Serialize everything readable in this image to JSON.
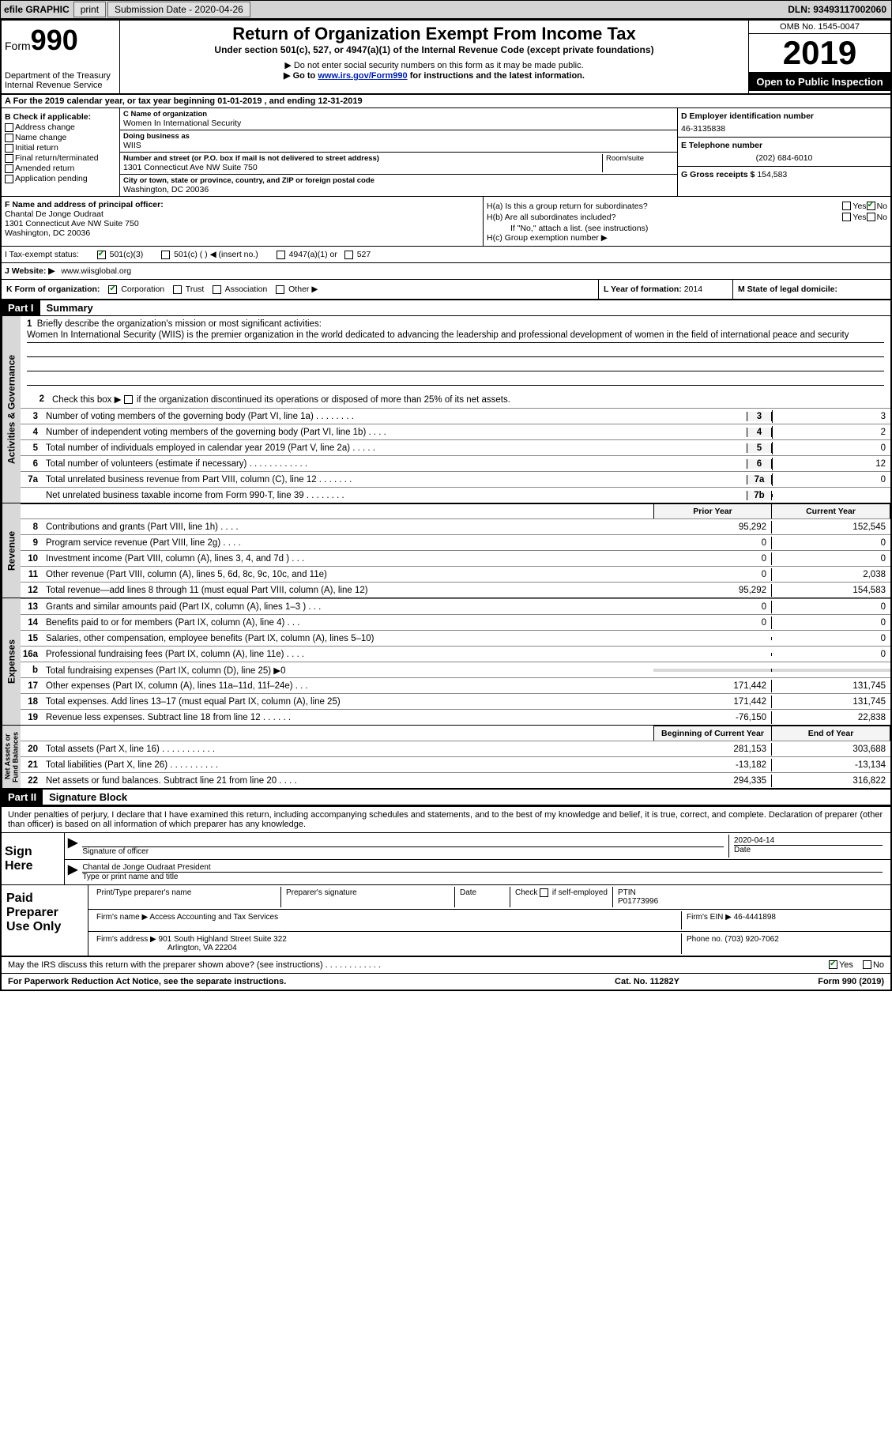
{
  "topbar": {
    "efile_label": "efile GRAPHIC",
    "print_label": "print",
    "sub_date_label": "Submission Date - 2020-04-26",
    "dln": "DLN: 93493117002060"
  },
  "header": {
    "form_word": "Form",
    "form_num": "990",
    "dept": "Department of the Treasury\nInternal Revenue Service",
    "title": "Return of Organization Exempt From Income Tax",
    "sub": "Under section 501(c), 527, or 4947(a)(1) of the Internal Revenue Code (except private foundations)",
    "note1": "▶ Do not enter social security numbers on this form as it may be made public.",
    "note2_pre": "▶ Go to ",
    "note2_link": "www.irs.gov/Form990",
    "note2_post": " for instructions and the latest information.",
    "omb": "OMB No. 1545-0047",
    "year": "2019",
    "open": "Open to Public Inspection"
  },
  "row_a": "A  For the 2019 calendar year, or tax year beginning 01-01-2019    , and ending 12-31-2019",
  "col_b": {
    "hdr": "B Check if applicable:",
    "items": [
      "Address change",
      "Name change",
      "Initial return",
      "Final return/terminated",
      "Amended return",
      "Application pending"
    ]
  },
  "col_c": {
    "name_lbl": "C Name of organization",
    "name": "Women In International Security",
    "dba_lbl": "Doing business as",
    "dba": "WIIS",
    "addr_lbl": "Number and street (or P.O. box if mail is not delivered to street address)",
    "addr": "1301 Connecticut Ave NW Suite 750",
    "room_lbl": "Room/suite",
    "city_lbl": "City or town, state or province, country, and ZIP or foreign postal code",
    "city": "Washington, DC  20036"
  },
  "col_d": {
    "lbl": "D Employer identification number",
    "val": "46-3135838"
  },
  "col_e": {
    "lbl": "E Telephone number",
    "val": "(202) 684-6010"
  },
  "col_g": {
    "lbl": "G Gross receipts $",
    "val": "154,583"
  },
  "col_f": {
    "lbl": "F  Name and address of principal officer:",
    "name": "Chantal De Jonge Oudraat",
    "addr1": "1301 Connecticut Ave NW Suite 750",
    "addr2": "Washington, DC  20036"
  },
  "col_h": {
    "a": "H(a)  Is this a group return for subordinates?",
    "b": "H(b)  Are all subordinates included?",
    "b_note": "If \"No,\" attach a list. (see instructions)",
    "c": "H(c)  Group exemption number ▶",
    "yes": "Yes",
    "no": "No"
  },
  "row_i": {
    "lbl": "I   Tax-exempt status:",
    "opts": [
      "501(c)(3)",
      "501(c) (  ) ◀ (insert no.)",
      "4947(a)(1) or",
      "527"
    ]
  },
  "row_j": {
    "lbl": "J   Website: ▶",
    "val": "www.wiisglobal.org"
  },
  "row_k": {
    "lbl": "K Form of organization:",
    "opts": [
      "Corporation",
      "Trust",
      "Association",
      "Other ▶"
    ]
  },
  "row_l": {
    "lbl": "L Year of formation:",
    "val": "2014"
  },
  "row_m": {
    "lbl": "M State of legal domicile:"
  },
  "part1": {
    "hdr": "Part I",
    "title": "Summary"
  },
  "summary": {
    "q1": "Briefly describe the organization's mission or most significant activities:",
    "mission": "Women In International Security (WIIS) is the premier organization in the world dedicated to advancing the leadership and professional development of women in the field of international peace and security",
    "q2": "Check this box ▶       if the organization discontinued its operations or disposed of more than 25% of its net assets.",
    "lines_gov": [
      {
        "n": "3",
        "d": "Number of voting members of the governing body (Part VI, line 1a)   .    .    .    .    .    .    .    .",
        "b": "3",
        "v": "3"
      },
      {
        "n": "4",
        "d": "Number of independent voting members of the governing body (Part VI, line 1b)   .    .    .    .",
        "b": "4",
        "v": "2"
      },
      {
        "n": "5",
        "d": "Total number of individuals employed in calendar year 2019 (Part V, line 2a)   .    .    .    .    .",
        "b": "5",
        "v": "0"
      },
      {
        "n": "6",
        "d": "Total number of volunteers (estimate if necessary)    .    .    .    .    .    .    .    .    .    .    .    .",
        "b": "6",
        "v": "12"
      },
      {
        "n": "7a",
        "d": "Total unrelated business revenue from Part VIII, column (C), line 12   .    .    .    .    .    .    .",
        "b": "7a",
        "v": "0"
      },
      {
        "n": "",
        "d": "Net unrelated business taxable income from Form 990-T, line 39    .    .    .    .    .    .    .    .",
        "b": "7b",
        "v": ""
      }
    ],
    "hdr_prior": "Prior Year",
    "hdr_curr": "Current Year",
    "lines_rev": [
      {
        "n": "8",
        "d": "Contributions and grants (Part VIII, line 1h)   .    .    .    .",
        "p": "95,292",
        "c": "152,545"
      },
      {
        "n": "9",
        "d": "Program service revenue (Part VIII, line 2g)   .    .    .    .",
        "p": "0",
        "c": "0"
      },
      {
        "n": "10",
        "d": "Investment income (Part VIII, column (A), lines 3, 4, and 7d )   .    .    .",
        "p": "0",
        "c": "0"
      },
      {
        "n": "11",
        "d": "Other revenue (Part VIII, column (A), lines 5, 6d, 8c, 9c, 10c, and 11e)",
        "p": "0",
        "c": "2,038"
      },
      {
        "n": "12",
        "d": "Total revenue—add lines 8 through 11 (must equal Part VIII, column (A), line 12)",
        "p": "95,292",
        "c": "154,583"
      }
    ],
    "lines_exp": [
      {
        "n": "13",
        "d": "Grants and similar amounts paid (Part IX, column (A), lines 1–3 )   .    .    .",
        "p": "0",
        "c": "0"
      },
      {
        "n": "14",
        "d": "Benefits paid to or for members (Part IX, column (A), line 4)   .    .    .",
        "p": "0",
        "c": "0"
      },
      {
        "n": "15",
        "d": "Salaries, other compensation, employee benefits (Part IX, column (A), lines 5–10)",
        "p": "",
        "c": "0"
      },
      {
        "n": "16a",
        "d": "Professional fundraising fees (Part IX, column (A), line 11e)   .    .    .    .",
        "p": "",
        "c": "0"
      },
      {
        "n": "b",
        "d": "Total fundraising expenses (Part IX, column (D), line 25) ▶0",
        "p": "",
        "c": "",
        "shaded": true
      },
      {
        "n": "17",
        "d": "Other expenses (Part IX, column (A), lines 11a–11d, 11f–24e)   .    .    .",
        "p": "171,442",
        "c": "131,745"
      },
      {
        "n": "18",
        "d": "Total expenses. Add lines 13–17 (must equal Part IX, column (A), line 25)",
        "p": "171,442",
        "c": "131,745"
      },
      {
        "n": "19",
        "d": "Revenue less expenses. Subtract line 18 from line 12   .    .    .    .    .    .",
        "p": "-76,150",
        "c": "22,838"
      }
    ],
    "hdr_beg": "Beginning of Current Year",
    "hdr_end": "End of Year",
    "lines_net": [
      {
        "n": "20",
        "d": "Total assets (Part X, line 16)   .    .    .    .    .    .    .    .    .    .    .",
        "p": "281,153",
        "c": "303,688"
      },
      {
        "n": "21",
        "d": "Total liabilities (Part X, line 26)   .    .    .    .    .    .    .    .    .    .",
        "p": "-13,182",
        "c": "-13,134"
      },
      {
        "n": "22",
        "d": "Net assets or fund balances. Subtract line 21 from line 20    .    .    .    .",
        "p": "294,335",
        "c": "316,822"
      }
    ],
    "vlabels": {
      "ag": "Activities & Governance",
      "rev": "Revenue",
      "exp": "Expenses",
      "net": "Net Assets or\nFund Balances"
    }
  },
  "part2": {
    "hdr": "Part II",
    "title": "Signature Block"
  },
  "sig": {
    "decl": "Under penalties of perjury, I declare that I have examined this return, including accompanying schedules and statements, and to the best of my knowledge and belief, it is true, correct, and complete. Declaration of preparer (other than officer) is based on all information of which preparer has any knowledge.",
    "sign_here": "Sign Here",
    "sig_officer_lbl": "Signature of officer",
    "date_lbl": "Date",
    "date_val": "2020-04-14",
    "name_title": "Chantal de Jonge Oudraat  President",
    "name_title_lbl": "Type or print name and title",
    "paid": "Paid Preparer Use Only",
    "prep_name_lbl": "Print/Type preparer's name",
    "prep_sig_lbl": "Preparer's signature",
    "check_lbl": "Check        if self-employed",
    "ptin_lbl": "PTIN",
    "ptin_val": "P01773996",
    "firm_name_lbl": "Firm's name    ▶",
    "firm_name": "Access Accounting and Tax Services",
    "firm_ein_lbl": "Firm's EIN ▶",
    "firm_ein": "46-4441898",
    "firm_addr_lbl": "Firm's address ▶",
    "firm_addr1": "901 South Highland Street Suite 322",
    "firm_addr2": "Arlington, VA  22204",
    "phone_lbl": "Phone no.",
    "phone": "(703) 920-7062",
    "discuss": "May the IRS discuss this return with the preparer shown above? (see instructions)   .    .    .    .    .    .    .    .    .    .    .    .",
    "yes": "Yes",
    "no": "No"
  },
  "footer": {
    "l": "For Paperwork Reduction Act Notice, see the separate instructions.",
    "c": "Cat. No. 11282Y",
    "r": "Form 990 (2019)"
  }
}
